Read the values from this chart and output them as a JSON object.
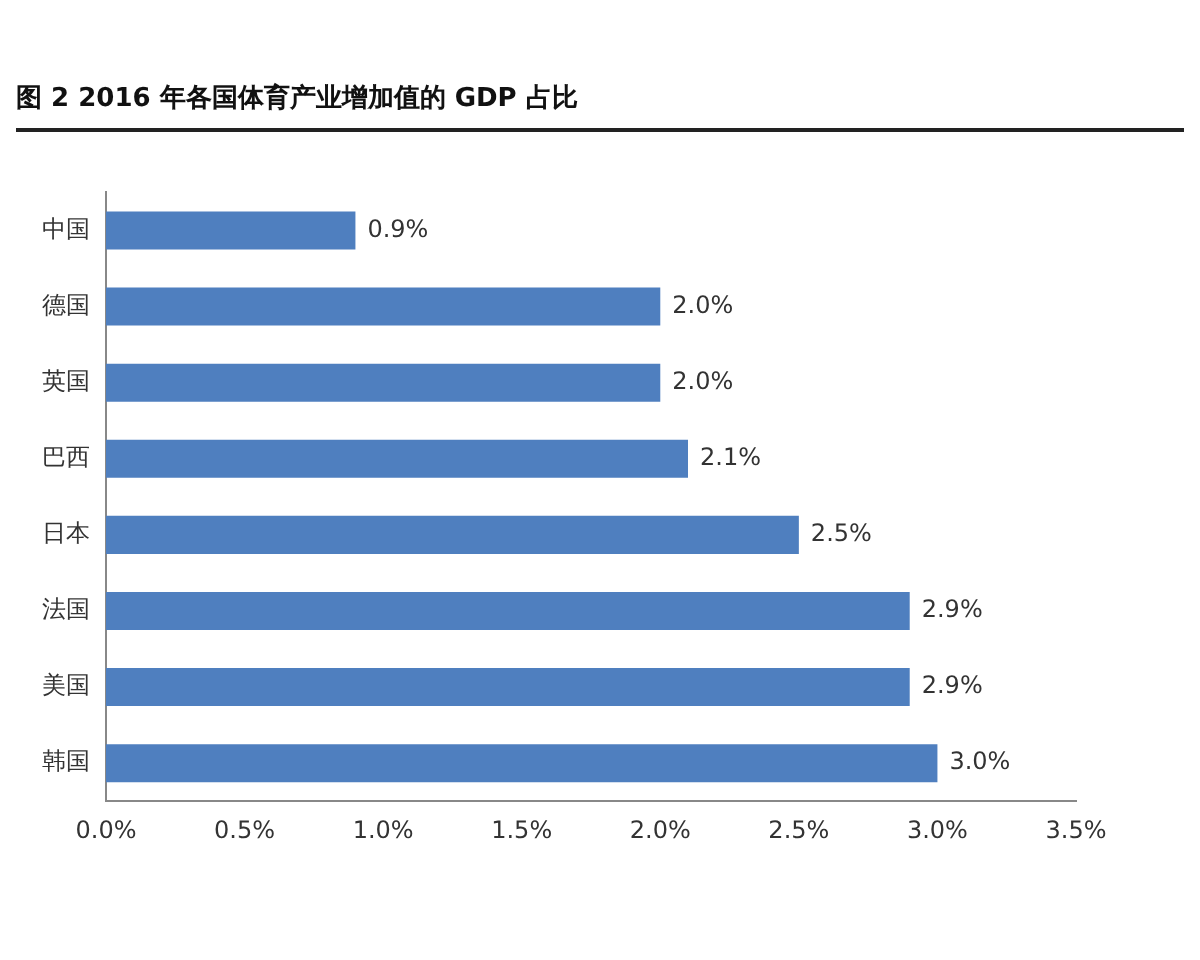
{
  "chart_data": {
    "type": "bar",
    "orientation": "horizontal",
    "title": "图 2 2016 年各国体育产业增加值的 GDP 占比",
    "categories": [
      "中国",
      "德国",
      "英国",
      "巴西",
      "日本",
      "法国",
      "美国",
      "韩国"
    ],
    "values": [
      0.9,
      2.0,
      2.0,
      2.1,
      2.5,
      2.9,
      2.9,
      3.0
    ],
    "value_labels": [
      "0.9%",
      "2.0%",
      "2.0%",
      "2.1%",
      "2.5%",
      "2.9%",
      "2.9%",
      "3.0%"
    ],
    "color": "#4f7fbf",
    "xlim": [
      0,
      3.5
    ],
    "xticks": [
      {
        "value": 0,
        "label": "0.0%"
      },
      {
        "value": 0.5,
        "label": "0.5%"
      },
      {
        "value": 1,
        "label": "1.0%"
      },
      {
        "value": 1.5,
        "label": "1.5%"
      },
      {
        "value": 2,
        "label": "2.0%"
      },
      {
        "value": 2.5,
        "label": "2.5%"
      },
      {
        "value": 3,
        "label": "3.0%"
      },
      {
        "value": 3.5,
        "label": "3.5%"
      }
    ],
    "grid": false,
    "legend": false
  }
}
